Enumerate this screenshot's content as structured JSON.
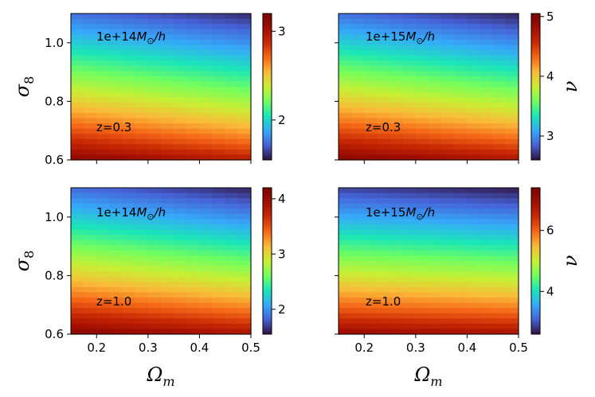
{
  "chart_data": {
    "type": "heatmap",
    "colormap": "turbo",
    "shared_axes": {
      "xlabel_main": "Ω",
      "xlabel_sub": "m",
      "ylabel_main": "σ",
      "ylabel_sub": "8",
      "cbar_label": "ν",
      "xlim": [
        0.15,
        0.5
      ],
      "ylim": [
        0.6,
        1.1
      ],
      "xticks": [
        0.2,
        0.3,
        0.4,
        0.5
      ],
      "xtick_labels": [
        "0.2",
        "0.3",
        "0.4",
        "0.5"
      ],
      "yticks": [
        0.6,
        0.8,
        1.0
      ],
      "ytick_labels": [
        "0.6",
        "0.8",
        "1.0"
      ]
    },
    "panels": [
      {
        "mass_label": "1e+14",
        "redshift_label": "z=0.3",
        "cbar_range": [
          1.55,
          3.2
        ],
        "cbar_ticks": [
          2,
          3
        ],
        "cbar_tick_labels": [
          "2",
          "3"
        ],
        "corner_values": {
          "x_low_y_low": 3.15,
          "x_high_y_low": 2.95,
          "x_low_y_high": 1.75,
          "x_high_y_high": 1.6
        }
      },
      {
        "mass_label": "1e+15",
        "redshift_label": "z=0.3",
        "cbar_range": [
          2.6,
          5.05
        ],
        "cbar_ticks": [
          3,
          4,
          5
        ],
        "cbar_tick_labels": [
          "3",
          "4",
          "5"
        ],
        "corner_values": {
          "x_low_y_low": 5.0,
          "x_high_y_low": 4.75,
          "x_low_y_high": 2.9,
          "x_high_y_high": 2.65
        }
      },
      {
        "mass_label": "1e+14",
        "redshift_label": "z=1.0",
        "cbar_range": [
          1.55,
          4.2
        ],
        "cbar_ticks": [
          2,
          3,
          4
        ],
        "cbar_tick_labels": [
          "2",
          "3",
          "4"
        ],
        "corner_values": {
          "x_low_y_low": 4.15,
          "x_high_y_low": 3.9,
          "x_low_y_high": 1.85,
          "x_high_y_high": 1.6
        }
      },
      {
        "mass_label": "1e+15",
        "redshift_label": "z=1.0",
        "cbar_range": [
          2.6,
          7.4
        ],
        "cbar_ticks": [
          4,
          6
        ],
        "cbar_tick_labels": [
          "4",
          "6"
        ],
        "corner_values": {
          "x_low_y_low": 7.1,
          "x_high_y_low": 6.9,
          "x_low_y_high": 2.9,
          "x_high_y_high": 2.65
        }
      }
    ]
  }
}
